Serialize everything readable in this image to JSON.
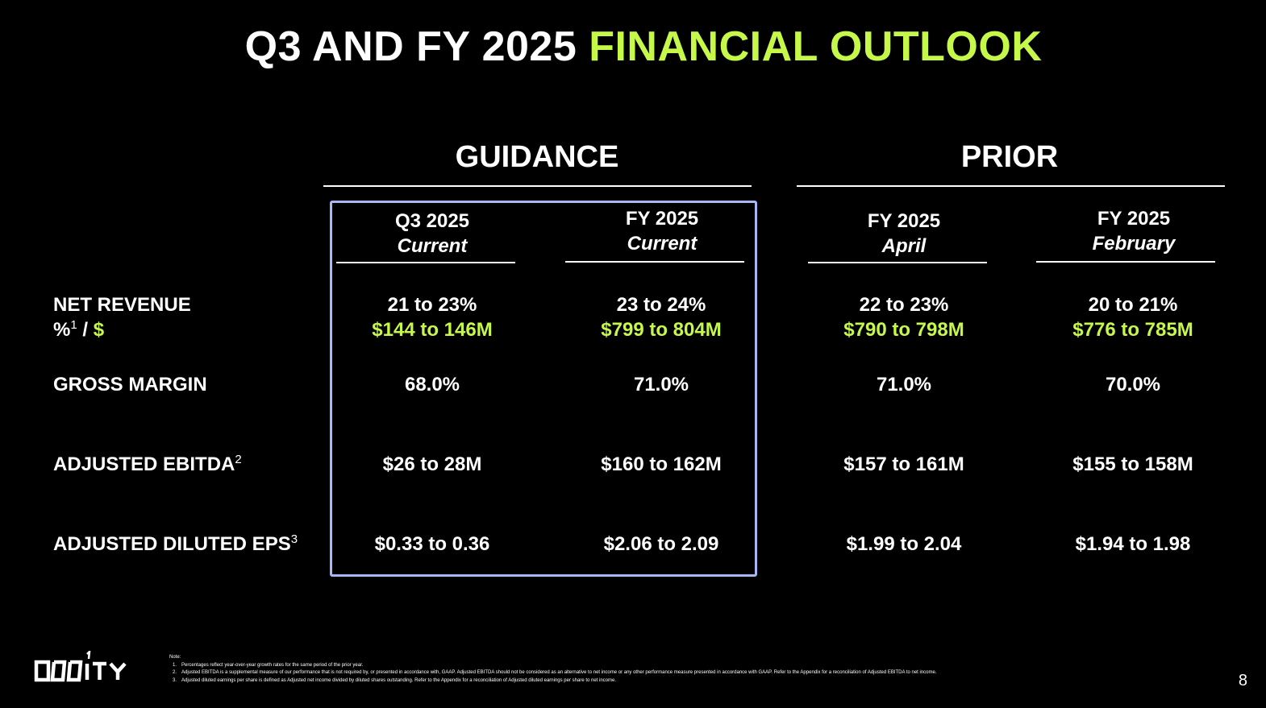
{
  "title": {
    "part1": "Q3 AND FY 2025 ",
    "part2": "FINANCIAL OUTLOOK"
  },
  "sections": {
    "guidance": "GUIDANCE",
    "prior": "PRIOR"
  },
  "columns": [
    {
      "line1": "Q3 2025",
      "line2": "Current"
    },
    {
      "line1": "FY 2025",
      "line2": "Current"
    },
    {
      "line1": "FY 2025",
      "line2": "April"
    },
    {
      "line1": "FY 2025",
      "line2": "February"
    }
  ],
  "rows": {
    "net_revenue": {
      "label1": "NET REVENUE",
      "label2_pct": "%",
      "label2_sup": "1",
      "label2_sep": " / ",
      "label2_dollar": "$",
      "values": [
        {
          "pct": "21 to 23%",
          "amount": "$144 to 146M"
        },
        {
          "pct": "23 to 24%",
          "amount": "$799 to 804M"
        },
        {
          "pct": "22 to 23%",
          "amount": "$790 to 798M"
        },
        {
          "pct": "20 to 21%",
          "amount": "$776 to 785M"
        }
      ]
    },
    "gross_margin": {
      "label": "GROSS MARGIN",
      "values": [
        "68.0%",
        "71.0%",
        "71.0%",
        "70.0%"
      ]
    },
    "adjusted_ebitda": {
      "label": "ADJUSTED EBITDA",
      "sup": "2",
      "values": [
        "$26 to 28M",
        "$160 to 162M",
        "$157 to 161M",
        "$155 to 158M"
      ]
    },
    "adjusted_eps": {
      "label": "ADJUSTED DILUTED EPS",
      "sup": "3",
      "values": [
        "$0.33 to 0.36",
        "$2.06 to 2.09",
        "$1.99 to 2.04",
        "$1.94 to 1.98"
      ]
    }
  },
  "notes": {
    "heading": "Note:",
    "items": [
      {
        "num": "1.",
        "text": "Percentages reflect year-over-year growth rates for the same period of the prior year."
      },
      {
        "num": "2.",
        "text": "Adjusted EBITDA is a supplemental measure of our performance that is not required by, or presented in accordance with, GAAP. Adjusted EBITDA should not be considered as an alternative to net income or any other performance measure presented in accordance with GAAP. Refer to the Appendix for a reconciliation of Adjusted EBITDA to net income."
      },
      {
        "num": "3.",
        "text": "Adjusted diluted earnings per share is defined as Adjusted net income divided by diluted shares outstanding. Refer to the Appendix for a reconciliation of Adjusted diluted earnings per share to net income."
      }
    ]
  },
  "logo": {
    "text": "ODDITY",
    "icon": "oddity-logo"
  },
  "page_number": "8",
  "colors": {
    "accent": "#c6f84a",
    "box": "#a8b7f5",
    "background": "#000000",
    "text": "#ffffff"
  }
}
